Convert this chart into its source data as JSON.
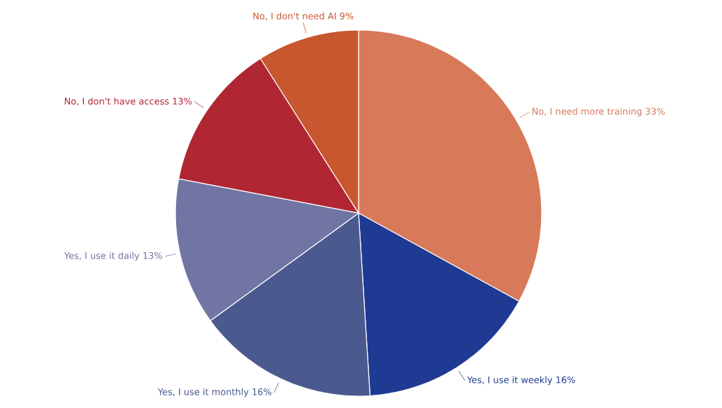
{
  "chart_data": {
    "type": "pie",
    "categories": [
      "No, I need more training",
      "Yes, I use it weekly",
      "Yes, I use it monthly",
      "Yes, I use it daily",
      "No, I don't have access",
      "No, I don't need AI"
    ],
    "values": [
      33,
      16,
      16,
      13,
      13,
      9
    ],
    "value_labels": [
      "33%",
      "16%",
      "16%",
      "13%",
      "13%",
      "9%"
    ],
    "colors": [
      "#d8795a",
      "#1e3a92",
      "#4b5a8e",
      "#7075a4",
      "#b02633",
      "#c8562f"
    ]
  }
}
